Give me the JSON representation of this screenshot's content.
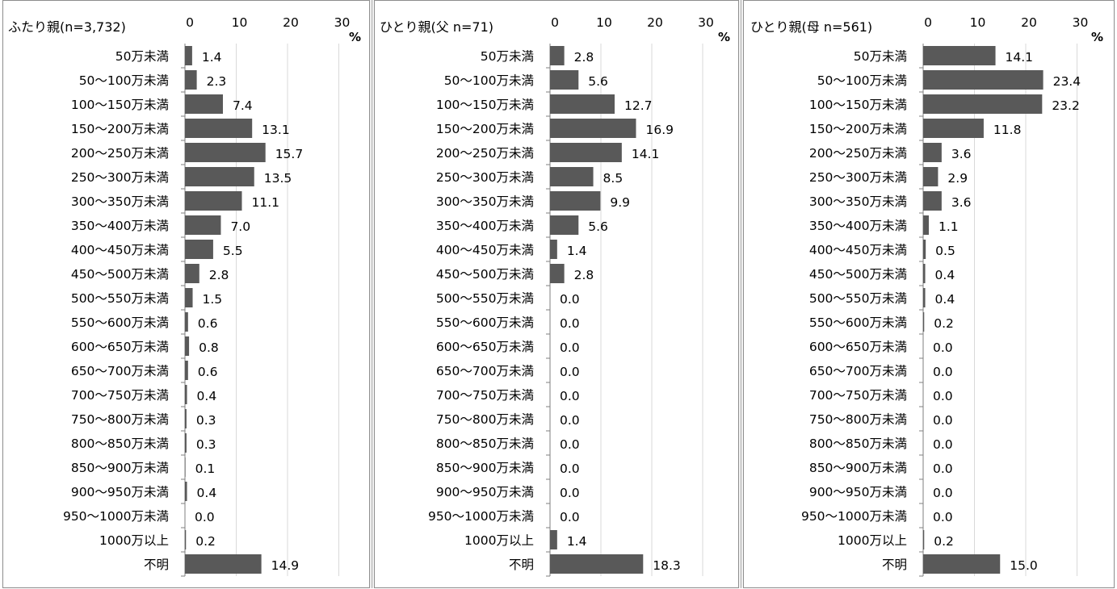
{
  "colors": {
    "bar": "#595959",
    "grid": "#d9d9d9",
    "axis": "#7f7f7f"
  },
  "chart_data": [
    {
      "type": "bar",
      "orientation": "horizontal",
      "title": "ふたり親(n=3,732)",
      "unit": "%",
      "xlim": [
        0,
        30
      ],
      "ticks": [
        "0",
        "10",
        "20",
        "30"
      ],
      "grid": true,
      "categories": [
        "50万未満",
        "50～100万未満",
        "100～150万未満",
        "150～200万未満",
        "200～250万未満",
        "250～300万未満",
        "300～350万未満",
        "350～400万未満",
        "400～450万未満",
        "450～500万未満",
        "500～550万未満",
        "550～600万未満",
        "600～650万未満",
        "650～700万未満",
        "700～750万未満",
        "750～800万未満",
        "800～850万未満",
        "850～900万未満",
        "900～950万未満",
        "950～1000万未満",
        "1000万以上",
        "不明"
      ],
      "values": [
        1.4,
        2.3,
        7.4,
        13.1,
        15.7,
        13.5,
        11.1,
        7.0,
        5.5,
        2.8,
        1.5,
        0.6,
        0.8,
        0.6,
        0.4,
        0.3,
        0.3,
        0.1,
        0.4,
        0.0,
        0.2,
        14.9
      ],
      "labels": [
        "1.4",
        "2.3",
        "7.4",
        "13.1",
        "15.7",
        "13.5",
        "11.1",
        "7.0",
        "5.5",
        "2.8",
        "1.5",
        "0.6",
        "0.8",
        "0.6",
        "0.4",
        "0.3",
        "0.3",
        "0.1",
        "0.4",
        "0.0",
        "0.2",
        "14.9"
      ]
    },
    {
      "type": "bar",
      "orientation": "horizontal",
      "title": "ひとり親(父 n=71)",
      "unit": "%",
      "xlim": [
        0,
        30
      ],
      "ticks": [
        "0",
        "10",
        "20",
        "30"
      ],
      "grid": true,
      "categories": [
        "50万未満",
        "50～100万未満",
        "100～150万未満",
        "150～200万未満",
        "200～250万未満",
        "250～300万未満",
        "300～350万未満",
        "350～400万未満",
        "400～450万未満",
        "450～500万未満",
        "500～550万未満",
        "550～600万未満",
        "600～650万未満",
        "650～700万未満",
        "700～750万未満",
        "750～800万未満",
        "800～850万未満",
        "850～900万未満",
        "900～950万未満",
        "950～1000万未満",
        "1000万以上",
        "不明"
      ],
      "values": [
        2.8,
        5.6,
        12.7,
        16.9,
        14.1,
        8.5,
        9.9,
        5.6,
        1.4,
        2.8,
        0.0,
        0.0,
        0.0,
        0.0,
        0.0,
        0.0,
        0.0,
        0.0,
        0.0,
        0.0,
        1.4,
        18.3
      ],
      "labels": [
        "2.8",
        "5.6",
        "12.7",
        "16.9",
        "14.1",
        "8.5",
        "9.9",
        "5.6",
        "1.4",
        "2.8",
        "0.0",
        "0.0",
        "0.0",
        "0.0",
        "0.0",
        "0.0",
        "0.0",
        "0.0",
        "0.0",
        "0.0",
        "1.4",
        "18.3"
      ]
    },
    {
      "type": "bar",
      "orientation": "horizontal",
      "title": "ひとり親(母 n=561)",
      "unit": "%",
      "xlim": [
        0,
        30
      ],
      "ticks": [
        "0",
        "10",
        "20",
        "30"
      ],
      "grid": true,
      "categories": [
        "50万未満",
        "50～100万未満",
        "100～150万未満",
        "150～200万未満",
        "200～250万未満",
        "250～300万未満",
        "300～350万未満",
        "350～400万未満",
        "400～450万未満",
        "450～500万未満",
        "500～550万未満",
        "550～600万未満",
        "600～650万未満",
        "650～700万未満",
        "700～750万未満",
        "750～800万未満",
        "800～850万未満",
        "850～900万未満",
        "900～950万未満",
        "950～1000万未満",
        "1000万以上",
        "不明"
      ],
      "values": [
        14.1,
        23.4,
        23.2,
        11.8,
        3.6,
        2.9,
        3.6,
        1.1,
        0.5,
        0.4,
        0.4,
        0.2,
        0.0,
        0.0,
        0.0,
        0.0,
        0.0,
        0.0,
        0.0,
        0.0,
        0.2,
        15.0
      ],
      "labels": [
        "14.1",
        "23.4",
        "23.2",
        "11.8",
        "3.6",
        "2.9",
        "3.6",
        "1.1",
        "0.5",
        "0.4",
        "0.4",
        "0.2",
        "0.0",
        "0.0",
        "0.0",
        "0.0",
        "0.0",
        "0.0",
        "0.0",
        "0.0",
        "0.2",
        "15.0"
      ]
    }
  ]
}
